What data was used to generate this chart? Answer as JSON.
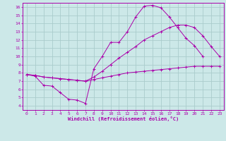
{
  "xlabel": "Windchill (Refroidissement éolien,°C)",
  "background_color": "#cce8e8",
  "grid_color": "#aacccc",
  "line_color": "#aa00aa",
  "spine_color": "#aa00aa",
  "xlim": [
    -0.5,
    23.5
  ],
  "ylim": [
    3.5,
    16.5
  ],
  "xticks": [
    0,
    1,
    2,
    3,
    4,
    5,
    6,
    7,
    8,
    9,
    10,
    11,
    12,
    13,
    14,
    15,
    16,
    17,
    18,
    19,
    20,
    21,
    22,
    23
  ],
  "yticks": [
    4,
    5,
    6,
    7,
    8,
    9,
    10,
    11,
    12,
    13,
    14,
    15,
    16
  ],
  "series": [
    {
      "x": [
        0,
        1,
        2,
        3,
        4,
        5,
        6,
        7,
        8,
        9,
        10,
        11,
        12,
        13,
        14,
        15,
        16,
        17,
        18,
        19,
        20,
        21
      ],
      "y": [
        7.8,
        7.6,
        6.5,
        6.4,
        5.6,
        4.8,
        4.7,
        4.3,
        8.5,
        10.0,
        11.7,
        11.7,
        13.0,
        14.8,
        16.1,
        16.2,
        15.9,
        14.8,
        13.5,
        12.2,
        11.3,
        10.0
      ]
    },
    {
      "x": [
        0,
        1,
        2,
        3,
        4,
        5,
        6,
        7,
        8,
        9,
        10,
        11,
        12,
        13,
        14,
        15,
        16,
        17,
        18,
        19,
        20,
        21,
        22,
        23
      ],
      "y": [
        7.8,
        7.7,
        7.5,
        7.4,
        7.3,
        7.2,
        7.1,
        7.0,
        7.2,
        7.4,
        7.6,
        7.8,
        8.0,
        8.1,
        8.2,
        8.3,
        8.4,
        8.5,
        8.6,
        8.7,
        8.8,
        8.8,
        8.8,
        8.8
      ]
    },
    {
      "x": [
        0,
        1,
        2,
        3,
        4,
        5,
        6,
        7,
        8,
        9,
        10,
        11,
        12,
        13,
        14,
        15,
        16,
        17,
        18,
        19,
        20,
        21,
        22,
        23
      ],
      "y": [
        7.8,
        7.7,
        7.5,
        7.4,
        7.3,
        7.2,
        7.1,
        7.0,
        7.5,
        8.2,
        9.0,
        9.8,
        10.5,
        11.2,
        12.0,
        12.5,
        13.0,
        13.5,
        13.8,
        13.8,
        13.5,
        12.5,
        11.2,
        10.0
      ]
    }
  ]
}
